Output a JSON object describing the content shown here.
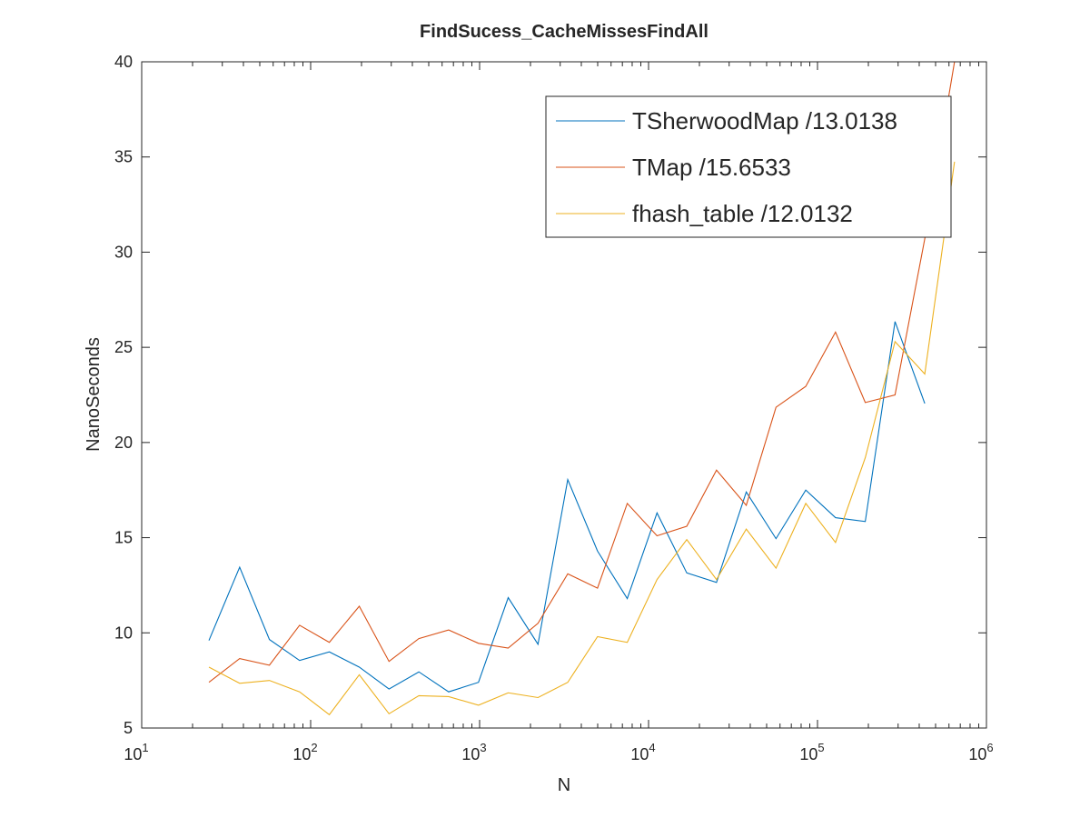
{
  "chart_data": {
    "type": "line",
    "title": "FindSucess_CacheMissesFindAll",
    "xlabel": "N",
    "ylabel": "NanoSeconds",
    "xscale": "log",
    "xlim": [
      10,
      1000000
    ],
    "ylim": [
      5,
      40
    ],
    "yticks": [
      5,
      10,
      15,
      20,
      25,
      30,
      35,
      40
    ],
    "ytick_labels": [
      "5",
      "10",
      "15",
      "20",
      "25",
      "30",
      "35",
      "40"
    ],
    "xticks": [
      10,
      100,
      1000,
      10000,
      100000,
      1000000
    ],
    "xtick_labels": [
      {
        "base": "10",
        "exp": "1"
      },
      {
        "base": "10",
        "exp": "2"
      },
      {
        "base": "10",
        "exp": "3"
      },
      {
        "base": "10",
        "exp": "4"
      },
      {
        "base": "10",
        "exp": "5"
      },
      {
        "base": "10",
        "exp": "6"
      }
    ],
    "grid": false,
    "legend_position": "top-right",
    "x": [
      25,
      38,
      57,
      86,
      129,
      194,
      291,
      437,
      656,
      985,
      1477,
      2216,
      3325,
      4988,
      7482,
      11223,
      16834,
      25251,
      37877,
      56815,
      85223,
      127835,
      191752,
      287628,
      431442,
      647163
    ],
    "series": [
      {
        "name": "TSherwoodMap /13.0138",
        "color": "#0072BD",
        "values": [
          9.6,
          13.45,
          9.65,
          8.55,
          9.0,
          8.2,
          7.05,
          7.95,
          6.9,
          7.4,
          11.85,
          9.4,
          18.05,
          14.3,
          11.8,
          16.3,
          13.15,
          12.65,
          17.4,
          14.95,
          17.5,
          16.05,
          15.85,
          26.35,
          22.05,
          null
        ]
      },
      {
        "name": "TMap /15.6533",
        "color": "#D95319",
        "values": [
          7.4,
          8.65,
          8.3,
          10.4,
          9.5,
          11.4,
          8.5,
          9.7,
          10.15,
          9.45,
          9.2,
          10.5,
          13.1,
          12.35,
          16.8,
          15.1,
          15.6,
          18.55,
          16.7,
          21.85,
          22.95,
          25.8,
          22.1,
          22.5,
          30.7,
          40.0
        ]
      },
      {
        "name": "fhash_table /12.0132",
        "color": "#EDB120",
        "values": [
          8.2,
          7.35,
          7.5,
          6.9,
          5.7,
          7.8,
          5.75,
          6.7,
          6.65,
          6.2,
          6.85,
          6.6,
          7.4,
          9.8,
          9.5,
          12.8,
          14.9,
          12.8,
          15.45,
          13.4,
          16.8,
          14.75,
          19.2,
          25.3,
          23.6,
          34.75
        ]
      }
    ]
  }
}
